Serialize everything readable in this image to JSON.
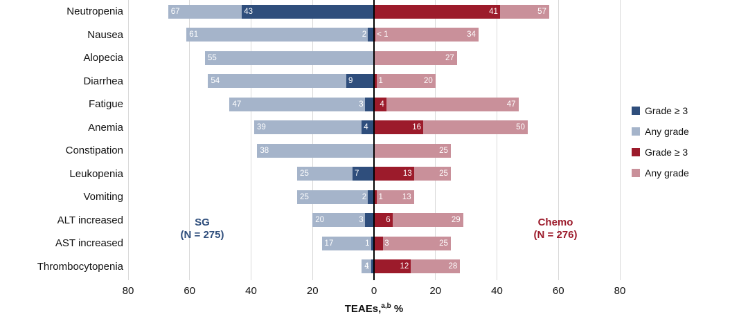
{
  "chart_data": {
    "type": "bar",
    "subtype": "diverging-tornado",
    "title": "",
    "xlabel": "TEAEs, %",
    "axis": {
      "ticks": [
        "80",
        "60",
        "40",
        "20",
        "0",
        "20",
        "40",
        "60",
        "80"
      ],
      "range_per_side": 80,
      "tick_step": 20,
      "title_main": "TEAEs,",
      "title_sup": "a,b",
      "title_unit": " %"
    },
    "grid": true,
    "legend_position": "right",
    "groups": {
      "left": {
        "line1": "SG",
        "line2": "(N = 275)",
        "color": "#2f4e7c"
      },
      "right": {
        "line1": "Chemo",
        "line2": "(N = 276)",
        "color": "#9c1b2b"
      }
    },
    "legend": [
      {
        "label": "Grade ≥ 3",
        "color": "#2f4e7c"
      },
      {
        "label": "Any grade",
        "color": "#a5b4ca"
      },
      {
        "label": "Grade ≥ 3",
        "color": "#9c1b2b"
      },
      {
        "label": "Any grade",
        "color": "#c9909a"
      }
    ],
    "colors": {
      "sg_dark": "#2f4e7c",
      "sg_light": "#a5b4ca",
      "chemo_dark": "#9c1b2b",
      "chemo_light": "#c9909a",
      "gridline": "#d9d9d9",
      "axis_line": "#000000"
    },
    "rows": [
      {
        "category": "Neutropenia",
        "sg": {
          "any": {
            "value": 67,
            "label": "67"
          },
          "g3": {
            "value": 43,
            "label": "43"
          }
        },
        "chemo": {
          "g3": {
            "value": 41,
            "label": "41"
          },
          "any": {
            "value": 57,
            "label": "57"
          }
        }
      },
      {
        "category": "Nausea",
        "sg": {
          "any": {
            "value": 61,
            "label": "61"
          },
          "g3": {
            "value": 2,
            "label": "2"
          }
        },
        "chemo": {
          "g3": {
            "value": 0.5,
            "label": "< 1"
          },
          "any": {
            "value": 34,
            "label": "34"
          }
        }
      },
      {
        "category": "Alopecia",
        "sg": {
          "any": {
            "value": 55,
            "label": "55"
          },
          "g3": null
        },
        "chemo": {
          "g3": null,
          "any": {
            "value": 27,
            "label": "27"
          }
        }
      },
      {
        "category": "Diarrhea",
        "sg": {
          "any": {
            "value": 54,
            "label": "54"
          },
          "g3": {
            "value": 9,
            "label": "9"
          }
        },
        "chemo": {
          "g3": {
            "value": 1,
            "label": "1"
          },
          "any": {
            "value": 20,
            "label": "20"
          }
        }
      },
      {
        "category": "Fatigue",
        "sg": {
          "any": {
            "value": 47,
            "label": "47"
          },
          "g3": {
            "value": 3,
            "label": "3"
          }
        },
        "chemo": {
          "g3": {
            "value": 4,
            "label": "4"
          },
          "any": {
            "value": 47,
            "label": "47"
          }
        }
      },
      {
        "category": "Anemia",
        "sg": {
          "any": {
            "value": 39,
            "label": "39"
          },
          "g3": {
            "value": 4,
            "label": "4"
          }
        },
        "chemo": {
          "g3": {
            "value": 16,
            "label": "16"
          },
          "any": {
            "value": 50,
            "label": "50"
          }
        }
      },
      {
        "category": "Constipation",
        "sg": {
          "any": {
            "value": 38,
            "label": "38"
          },
          "g3": null
        },
        "chemo": {
          "g3": null,
          "any": {
            "value": 25,
            "label": "25"
          }
        }
      },
      {
        "category": "Leukopenia",
        "sg": {
          "any": {
            "value": 25,
            "label": "25"
          },
          "g3": {
            "value": 7,
            "label": "7"
          }
        },
        "chemo": {
          "g3": {
            "value": 13,
            "label": "13"
          },
          "any": {
            "value": 25,
            "label": "25"
          }
        }
      },
      {
        "category": "Vomiting",
        "sg": {
          "any": {
            "value": 25,
            "label": "25"
          },
          "g3": {
            "value": 2,
            "label": "2"
          }
        },
        "chemo": {
          "g3": {
            "value": 1,
            "label": "1"
          },
          "any": {
            "value": 13,
            "label": "13"
          }
        }
      },
      {
        "category": "ALT increased",
        "sg": {
          "any": {
            "value": 20,
            "label": "20"
          },
          "g3": {
            "value": 3,
            "label": "3"
          }
        },
        "chemo": {
          "g3": {
            "value": 6,
            "label": "6"
          },
          "any": {
            "value": 29,
            "label": "29"
          }
        }
      },
      {
        "category": "AST increased",
        "sg": {
          "any": {
            "value": 17,
            "label": "17"
          },
          "g3": {
            "value": 1,
            "label": "1"
          }
        },
        "chemo": {
          "g3": {
            "value": 3,
            "label": "3"
          },
          "any": {
            "value": 25,
            "label": "25"
          }
        }
      },
      {
        "category": "Thrombocytopenia",
        "sg": {
          "any": {
            "value": 4,
            "label": "4"
          },
          "g3": {
            "value": 1,
            "label": "1"
          }
        },
        "chemo": {
          "g3": {
            "value": 12,
            "label": "12"
          },
          "any": {
            "value": 28,
            "label": "28"
          }
        }
      }
    ]
  }
}
